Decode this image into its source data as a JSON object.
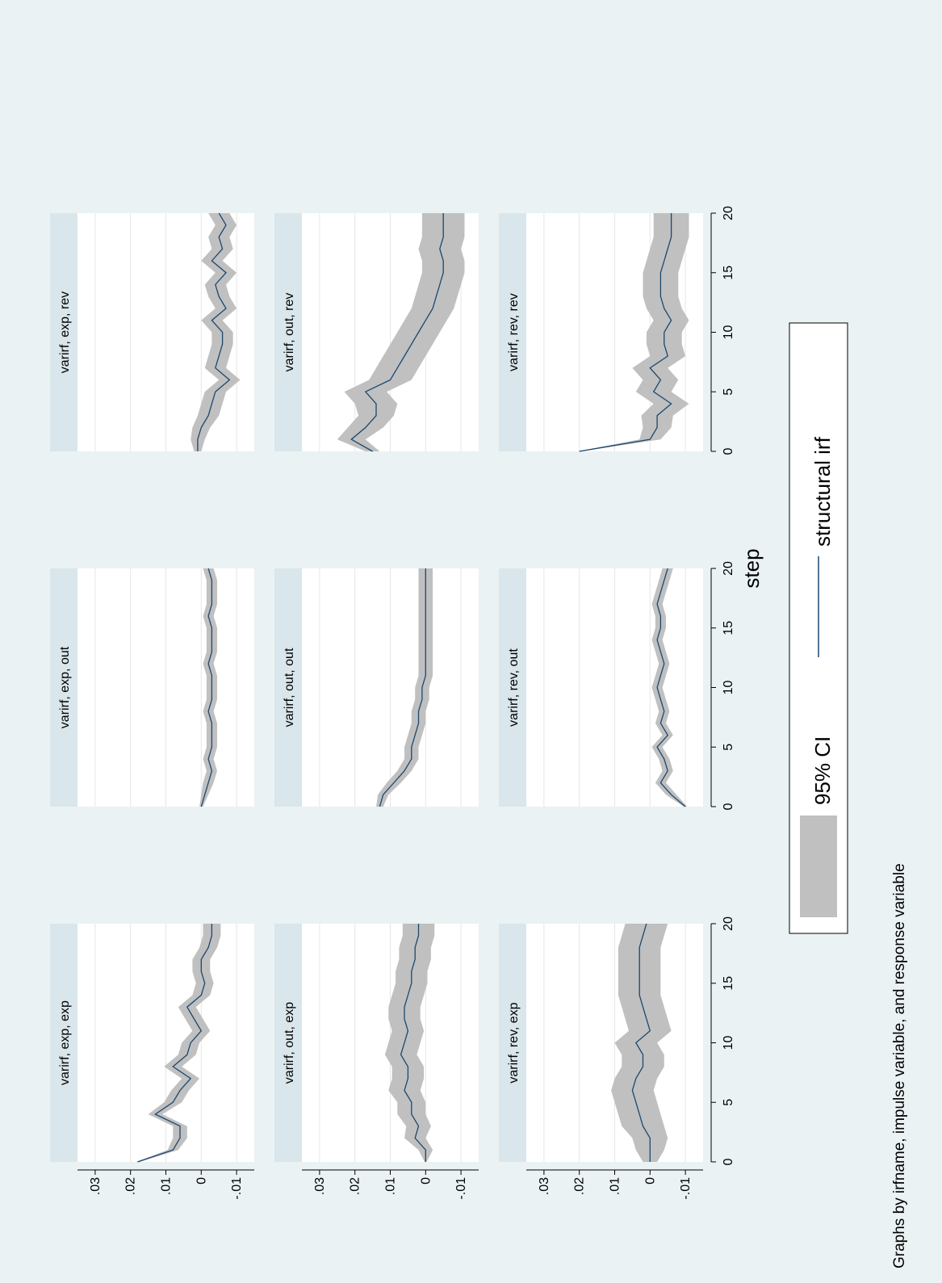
{
  "figure": {
    "note": "Graphs by irfname, impulse variable, and response variable",
    "xlabel": "step",
    "legend": {
      "ci_label": "95% CI",
      "line_label": "structural irf"
    },
    "colors": {
      "background": "#eaf2f3",
      "ci_fill": "#c0c0c0",
      "line": "#1a476f",
      "strip": "#d9e6eb",
      "panel": "#ffffff",
      "grid": "#e6e6e6"
    }
  },
  "chart_data": {
    "type": "line",
    "orientation": "rotated-90-counterclockwise",
    "x_ticks": [
      0,
      5,
      10,
      15,
      20
    ],
    "y_ticks": [
      -0.01,
      0,
      0.01,
      0.02,
      0.03
    ],
    "y_tick_labels": [
      "-.01",
      "0",
      ".01",
      ".02",
      ".03"
    ],
    "xlim": [
      0,
      20
    ],
    "ylim": [
      -0.015,
      0.035
    ],
    "grid": true,
    "legend_position": "bottom",
    "panels": [
      {
        "title": "varirf, exp, exp",
        "row": 0,
        "col": 0,
        "irf": [
          0.018,
          0.008,
          0.006,
          0.006,
          0.013,
          0.008,
          0.006,
          0.003,
          0.008,
          0.004,
          0.003,
          0.0,
          0.002,
          0.004,
          0.0,
          -0.001,
          0.0,
          0.0,
          -0.002,
          -0.003,
          -0.003
        ],
        "half_width": [
          0.0005,
          0.0015,
          0.002,
          0.002,
          0.002,
          0.0025,
          0.0025,
          0.0025,
          0.0025,
          0.0025,
          0.0025,
          0.0025,
          0.0025,
          0.0025,
          0.0025,
          0.0025,
          0.0025,
          0.0025,
          0.0025,
          0.0025,
          0.0025
        ]
      },
      {
        "title": "varirf, exp, out",
        "row": 0,
        "col": 1,
        "irf": [
          0.0,
          -0.001,
          -0.002,
          -0.003,
          -0.002,
          -0.003,
          -0.003,
          -0.003,
          -0.002,
          -0.003,
          -0.003,
          -0.003,
          -0.002,
          -0.003,
          -0.003,
          -0.003,
          -0.002,
          -0.003,
          -0.003,
          -0.003,
          -0.002
        ],
        "half_width": [
          0.0005,
          0.001,
          0.0015,
          0.0015,
          0.0015,
          0.0015,
          0.0015,
          0.0015,
          0.0015,
          0.0015,
          0.0015,
          0.0015,
          0.0015,
          0.0015,
          0.0015,
          0.0015,
          0.0015,
          0.0015,
          0.0015,
          0.0015,
          0.0015
        ]
      },
      {
        "title": "varirf, exp, rev",
        "row": 0,
        "col": 2,
        "irf": [
          0.001,
          0.001,
          0.0,
          -0.002,
          -0.003,
          -0.004,
          -0.008,
          -0.004,
          -0.005,
          -0.006,
          -0.006,
          -0.003,
          -0.007,
          -0.005,
          -0.004,
          -0.007,
          -0.003,
          -0.006,
          -0.005,
          -0.007,
          -0.005
        ],
        "half_width": [
          0.001,
          0.002,
          0.0025,
          0.003,
          0.003,
          0.003,
          0.003,
          0.003,
          0.003,
          0.003,
          0.003,
          0.003,
          0.003,
          0.003,
          0.003,
          0.003,
          0.003,
          0.003,
          0.003,
          0.003,
          0.003
        ]
      },
      {
        "title": "varirf, out, exp",
        "row": 1,
        "col": 0,
        "irf": [
          0.0,
          0.0,
          0.003,
          0.002,
          0.004,
          0.004,
          0.006,
          0.005,
          0.005,
          0.007,
          0.006,
          0.005,
          0.006,
          0.006,
          0.005,
          0.004,
          0.004,
          0.003,
          0.003,
          0.002,
          0.002
        ],
        "half_width": [
          0.0003,
          0.002,
          0.003,
          0.0035,
          0.004,
          0.004,
          0.0045,
          0.0045,
          0.0045,
          0.0045,
          0.0045,
          0.0045,
          0.0045,
          0.0045,
          0.0045,
          0.0045,
          0.0045,
          0.0045,
          0.0045,
          0.0045,
          0.0045
        ]
      },
      {
        "title": "varirf, out, out",
        "row": 1,
        "col": 1,
        "irf": [
          0.013,
          0.012,
          0.009,
          0.006,
          0.004,
          0.004,
          0.003,
          0.002,
          0.002,
          0.001,
          0.001,
          0.0,
          0.0,
          0.0,
          0.0,
          0.0,
          0.0,
          0.0,
          0.0,
          0.0,
          0.0
        ],
        "half_width": [
          0.001,
          0.0015,
          0.002,
          0.002,
          0.002,
          0.002,
          0.002,
          0.002,
          0.002,
          0.002,
          0.002,
          0.002,
          0.002,
          0.002,
          0.002,
          0.002,
          0.002,
          0.002,
          0.002,
          0.002,
          0.002
        ]
      },
      {
        "title": "varirf, out, rev",
        "row": 1,
        "col": 2,
        "irf": [
          0.015,
          0.021,
          0.017,
          0.014,
          0.014,
          0.017,
          0.01,
          0.008,
          0.006,
          0.004,
          0.002,
          0.0,
          -0.002,
          -0.003,
          -0.004,
          -0.005,
          -0.005,
          -0.004,
          -0.005,
          -0.005,
          -0.005
        ],
        "half_width": [
          0.002,
          0.004,
          0.005,
          0.005,
          0.006,
          0.006,
          0.006,
          0.006,
          0.006,
          0.006,
          0.006,
          0.006,
          0.006,
          0.006,
          0.006,
          0.006,
          0.006,
          0.006,
          0.006,
          0.006,
          0.006
        ]
      },
      {
        "title": "varirf, rev, exp",
        "row": 2,
        "col": 0,
        "irf": [
          0.0,
          0.0,
          0.0,
          0.002,
          0.003,
          0.004,
          0.005,
          0.004,
          0.002,
          0.002,
          0.004,
          0.0,
          0.001,
          0.002,
          0.003,
          0.003,
          0.003,
          0.003,
          0.003,
          0.002,
          0.001
        ],
        "half_width": [
          0.002,
          0.004,
          0.005,
          0.006,
          0.006,
          0.006,
          0.006,
          0.006,
          0.006,
          0.006,
          0.006,
          0.006,
          0.006,
          0.006,
          0.006,
          0.006,
          0.006,
          0.006,
          0.006,
          0.006,
          0.006
        ]
      },
      {
        "title": "varirf, rev, out",
        "row": 2,
        "col": 1,
        "irf": [
          -0.01,
          -0.006,
          -0.003,
          -0.005,
          -0.004,
          -0.002,
          -0.005,
          -0.003,
          -0.004,
          -0.003,
          -0.002,
          -0.003,
          -0.004,
          -0.003,
          -0.002,
          -0.003,
          -0.003,
          -0.002,
          -0.003,
          -0.004,
          -0.005
        ],
        "half_width": [
          0.0005,
          0.0015,
          0.0015,
          0.0015,
          0.0015,
          0.0015,
          0.0015,
          0.0015,
          0.0015,
          0.0015,
          0.0015,
          0.0015,
          0.0015,
          0.0015,
          0.0015,
          0.0015,
          0.0015,
          0.0015,
          0.0015,
          0.0015,
          0.0015
        ]
      },
      {
        "title": "varirf, rev, rev",
        "row": 2,
        "col": 2,
        "irf": [
          0.02,
          0.0,
          -0.002,
          -0.002,
          -0.006,
          -0.001,
          -0.003,
          0.0,
          -0.005,
          -0.004,
          -0.004,
          -0.006,
          -0.004,
          -0.003,
          -0.003,
          -0.003,
          -0.004,
          -0.005,
          -0.006,
          -0.006,
          -0.006
        ],
        "half_width": [
          0.0005,
          0.003,
          0.004,
          0.0045,
          0.005,
          0.005,
          0.005,
          0.005,
          0.005,
          0.005,
          0.005,
          0.005,
          0.005,
          0.005,
          0.005,
          0.005,
          0.005,
          0.005,
          0.005,
          0.005,
          0.005
        ]
      }
    ]
  }
}
